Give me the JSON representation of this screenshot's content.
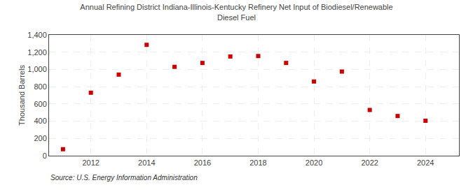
{
  "chart_data": {
    "type": "scatter",
    "title": "Annual Refining District Indiana-Illinois-Kentucky Refinery Net Input of Biodiesel/Renewable\nDiesel Fuel",
    "ylabel": "Thousand Barrels",
    "annotations": [
      "Source: U.S. Energy Information Administration"
    ],
    "x": [
      2011,
      2012,
      2013,
      2014,
      2015,
      2016,
      2017,
      2018,
      2019,
      2020,
      2021,
      2022,
      2023,
      2024
    ],
    "values": [
      75,
      730,
      940,
      1285,
      1030,
      1075,
      1150,
      1155,
      1075,
      860,
      975,
      530,
      460,
      405
    ],
    "color": "#cc0000",
    "marker": "square",
    "xlim": [
      2010.5,
      2025.2
    ],
    "xticks": [
      2012,
      2014,
      2016,
      2018,
      2020,
      2022,
      2024
    ],
    "ylim": [
      0,
      1400
    ],
    "yticks": [
      0,
      200,
      400,
      600,
      800,
      {
        "value": 1000,
        "label": "1,000"
      },
      {
        "value": 1200,
        "label": "1,200"
      },
      {
        "value": 1400,
        "label": "1,400"
      }
    ],
    "grid": true
  }
}
